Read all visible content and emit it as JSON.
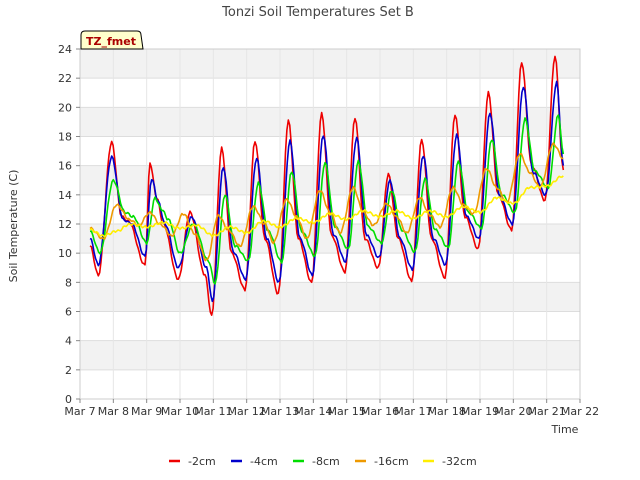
{
  "chart_data": {
    "type": "line",
    "title": "Tonzi Soil Temperatures Set B",
    "xlabel": "Time",
    "ylabel": "Soil Temperature (C)",
    "badge": "TZ_fmet",
    "xlim": [
      7,
      22
    ],
    "ylim": [
      0,
      24
    ],
    "x_tick_values": [
      7,
      8,
      9,
      10,
      11,
      12,
      13,
      14,
      15,
      16,
      17,
      18,
      19,
      20,
      21,
      22
    ],
    "x_tick_labels": [
      "Mar 7",
      "Mar 8",
      "Mar 9",
      "Mar 10",
      "Mar 11",
      "Mar 12",
      "Mar 13",
      "Mar 14",
      "Mar 15",
      "Mar 16",
      "Mar 17",
      "Mar 18",
      "Mar 19",
      "Mar 20",
      "Mar 21",
      "Mar 22"
    ],
    "y_ticks": [
      0,
      2,
      4,
      6,
      8,
      10,
      12,
      14,
      16,
      18,
      20,
      22,
      24
    ],
    "grid": true,
    "legend_position": "bottom",
    "series": [
      {
        "name": "-2cm",
        "color": "#ee0000",
        "x": [
          7.3,
          7.55,
          7.95,
          8.25,
          8.45,
          8.95,
          9.1,
          9.3,
          9.5,
          9.95,
          10.3,
          10.75,
          10.95,
          11.25,
          11.55,
          11.95,
          12.25,
          12.55,
          12.95,
          13.25,
          13.55,
          13.95,
          14.25,
          14.55,
          14.95,
          15.25,
          15.55,
          15.95,
          16.25,
          16.55,
          16.95,
          17.25,
          17.55,
          17.95,
          18.25,
          18.55,
          18.95,
          19.25,
          19.55,
          19.95,
          20.25,
          20.55,
          20.95,
          21.25,
          21.5
        ],
        "y": [
          10.5,
          8.5,
          17.6,
          12.5,
          12.2,
          9.2,
          16.2,
          13.8,
          12.0,
          8.2,
          12.8,
          8.5,
          5.7,
          17.2,
          10.0,
          7.5,
          17.7,
          11.0,
          7.2,
          19.1,
          11.0,
          8.0,
          19.6,
          11.2,
          8.7,
          19.3,
          11.0,
          9.0,
          15.4,
          11.0,
          8.1,
          17.8,
          11.0,
          8.3,
          19.5,
          12.5,
          10.3,
          21.0,
          14.0,
          11.6,
          23.1,
          16.0,
          13.6,
          23.5,
          15.7
        ]
      },
      {
        "name": "-4cm",
        "color": "#0000cc",
        "x": [
          7.3,
          7.55,
          7.95,
          8.3,
          8.55,
          8.95,
          9.15,
          9.35,
          9.55,
          9.95,
          10.35,
          10.8,
          10.97,
          11.3,
          11.6,
          11.97,
          12.3,
          12.6,
          12.97,
          13.3,
          13.6,
          13.97,
          14.3,
          14.6,
          14.97,
          15.3,
          15.6,
          15.97,
          16.3,
          16.6,
          16.97,
          17.3,
          17.6,
          17.97,
          18.3,
          18.6,
          18.97,
          19.3,
          19.6,
          19.97,
          20.3,
          20.6,
          20.97,
          21.3,
          21.5
        ],
        "y": [
          11.0,
          9.2,
          16.6,
          12.3,
          12.0,
          9.8,
          15.1,
          13.5,
          12.0,
          9.0,
          12.5,
          9.0,
          6.7,
          15.9,
          10.1,
          8.2,
          16.5,
          11.0,
          8.0,
          17.7,
          11.0,
          8.5,
          18.1,
          11.3,
          9.4,
          17.9,
          11.2,
          9.7,
          15.0,
          11.0,
          8.9,
          16.7,
          11.0,
          9.2,
          18.1,
          12.5,
          11.0,
          19.6,
          13.8,
          12.0,
          21.4,
          15.5,
          14.0,
          21.7,
          16.0
        ]
      },
      {
        "name": "-8cm",
        "color": "#00dd00",
        "x": [
          7.3,
          7.6,
          8.0,
          8.35,
          8.6,
          9.0,
          9.25,
          9.45,
          9.65,
          10.0,
          10.4,
          10.85,
          11.05,
          11.35,
          11.65,
          12.05,
          12.35,
          12.65,
          13.05,
          13.35,
          13.65,
          14.05,
          14.35,
          14.65,
          15.05,
          15.35,
          15.65,
          16.05,
          16.35,
          16.65,
          17.05,
          17.35,
          17.65,
          18.05,
          18.35,
          18.65,
          19.05,
          19.35,
          19.65,
          20.05,
          20.35,
          20.65,
          21.05,
          21.35,
          21.5
        ],
        "y": [
          11.5,
          10.0,
          15.0,
          12.8,
          12.5,
          10.7,
          13.8,
          13.0,
          12.3,
          10.0,
          12.0,
          9.5,
          7.9,
          14.0,
          10.5,
          9.5,
          14.8,
          11.5,
          9.4,
          15.6,
          11.5,
          9.8,
          16.2,
          11.8,
          10.3,
          16.3,
          11.8,
          10.7,
          14.3,
          11.6,
          10.1,
          15.1,
          11.6,
          10.4,
          16.3,
          12.8,
          11.7,
          17.8,
          14.0,
          12.8,
          19.2,
          15.6,
          14.5,
          19.5,
          16.8
        ]
      },
      {
        "name": "-16cm",
        "color": "#ee9900",
        "x": [
          7.3,
          7.7,
          8.1,
          8.5,
          8.75,
          9.1,
          9.4,
          9.75,
          10.1,
          10.45,
          10.8,
          11.15,
          11.45,
          11.8,
          12.2,
          12.55,
          12.8,
          13.2,
          13.5,
          13.8,
          14.2,
          14.5,
          14.8,
          15.2,
          15.5,
          15.8,
          16.2,
          16.5,
          16.8,
          17.2,
          17.5,
          17.8,
          18.2,
          18.5,
          18.8,
          19.2,
          19.5,
          19.8,
          20.2,
          20.5,
          20.8,
          21.2,
          21.5
        ],
        "y": [
          11.7,
          11.0,
          13.3,
          12.3,
          11.9,
          12.8,
          12.0,
          11.2,
          12.7,
          11.3,
          9.5,
          12.6,
          11.6,
          10.5,
          13.2,
          12.0,
          10.7,
          13.7,
          12.5,
          11.0,
          14.3,
          12.8,
          11.4,
          14.5,
          12.8,
          11.9,
          13.4,
          12.5,
          11.4,
          13.8,
          12.6,
          11.8,
          14.5,
          13.3,
          12.7,
          15.8,
          14.5,
          13.5,
          16.8,
          15.5,
          14.5,
          17.5,
          16.5
        ]
      },
      {
        "name": "-32cm",
        "color": "#ffee00",
        "x": [
          7.3,
          7.7,
          8.1,
          8.5,
          9.0,
          9.5,
          10.0,
          10.5,
          11.0,
          11.5,
          12.0,
          12.5,
          13.0,
          13.5,
          14.0,
          14.5,
          15.0,
          15.5,
          16.0,
          16.5,
          17.0,
          17.5,
          18.0,
          18.5,
          19.0,
          19.5,
          20.0,
          20.5,
          21.0,
          21.5
        ],
        "y": [
          11.6,
          11.2,
          11.5,
          12.0,
          11.8,
          12.1,
          11.7,
          11.9,
          11.2,
          11.8,
          11.4,
          12.2,
          11.8,
          12.4,
          12.1,
          12.7,
          12.3,
          12.9,
          12.5,
          12.9,
          12.4,
          12.9,
          12.5,
          13.2,
          12.8,
          13.8,
          13.4,
          14.5,
          14.6,
          15.3
        ]
      }
    ]
  }
}
